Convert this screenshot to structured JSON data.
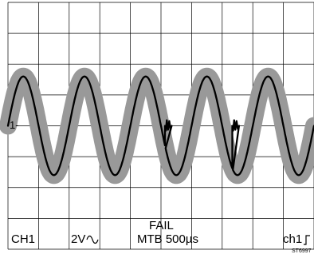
{
  "display": {
    "status_label": "FAIL",
    "channel": "CH1",
    "volts_per_div": "2V",
    "coupling_icon": "ac-coupling-icon",
    "timebase": "MTB 500µs",
    "trigger_source": "ch1",
    "trigger_icon": "rising-edge-icon",
    "reference_marker": "1-",
    "figure_id": "ST6997"
  },
  "colors": {
    "background": "#ffffff",
    "grid": "#000000",
    "mask": "#999999",
    "trace": "#000000"
  },
  "chart_data": {
    "type": "line",
    "title": "",
    "xlabel": "",
    "ylabel": "",
    "xlim": [
      0,
      10
    ],
    "ylim": [
      -4,
      4
    ],
    "grid": true,
    "grid_divisions": {
      "x": 10,
      "y": 8
    },
    "series": [
      {
        "role": "mask-envelope",
        "waveform": "sine",
        "amplitude_div": 1.6,
        "cycles": 5,
        "start_x": 0,
        "end_x": 10
      },
      {
        "role": "measured-trace",
        "waveform": "sine",
        "amplitude_div": 1.6,
        "cycles": 5,
        "start_x": 0,
        "end_x": 10,
        "glitches_at_x": [
          5.13,
          7.33
        ]
      }
    ]
  }
}
